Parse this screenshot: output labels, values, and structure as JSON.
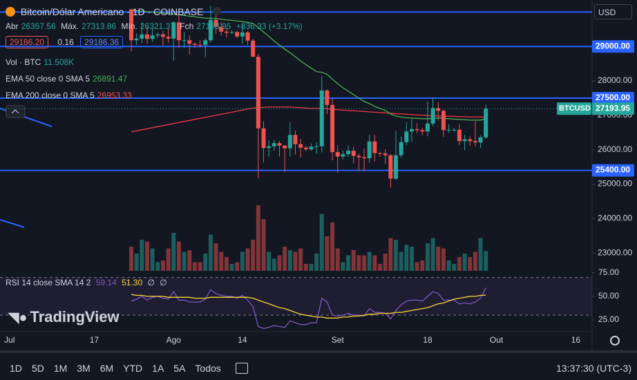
{
  "header": {
    "symbol": "Bitcoin/Dólar Americano · 1D · COINBASE",
    "ohlc": [
      {
        "label": "Abr",
        "value": "26357.56"
      },
      {
        "label": "Máx.",
        "value": "27313.86"
      },
      {
        "label": "Mín.",
        "value": "26321.37"
      },
      {
        "label": "Fch",
        "value": "27193.95"
      }
    ],
    "change": "+836.33 (+3.17%)",
    "sell": "29186.20",
    "spread": "0.16",
    "buy": "29186.36"
  },
  "indicators": {
    "volume": {
      "label": "Vol · BTC",
      "value": "11.508K"
    },
    "ema50": {
      "label": "EMA 50 close 0 SMA 5",
      "value": "26891.47"
    },
    "ema200": {
      "label": "EMA 200 close 0 SMA 5",
      "value": "26953.33"
    },
    "rsi": {
      "label": "RSI 14 close SMA 14 2",
      "values": [
        "59.14",
        "51.30",
        "∅",
        "∅"
      ]
    }
  },
  "logo": "TradingView",
  "currency": "USD",
  "chart": {
    "type": "candlestick",
    "candles": [
      [
        30080,
        30100,
        28860,
        29180
      ],
      [
        29180,
        29380,
        29050,
        29230
      ],
      [
        29230,
        29690,
        29100,
        29350
      ],
      [
        29350,
        29570,
        29080,
        29220
      ],
      [
        29220,
        29530,
        29130,
        29320
      ],
      [
        29320,
        29410,
        29250,
        29350
      ],
      [
        29350,
        29450,
        29030,
        29280
      ],
      [
        29280,
        29520,
        29110,
        29230
      ],
      [
        29230,
        29740,
        28590,
        29700
      ],
      [
        29700,
        30050,
        28950,
        29180
      ],
      [
        29180,
        29420,
        28960,
        29180
      ],
      [
        29180,
        29320,
        28760,
        29080
      ],
      [
        29080,
        29110,
        28960,
        29050
      ],
      [
        29050,
        29170,
        28970,
        29040
      ],
      [
        29040,
        29240,
        28700,
        29180
      ],
      [
        29180,
        30180,
        29110,
        29770
      ],
      [
        29770,
        30100,
        29360,
        29570
      ],
      [
        29570,
        29710,
        29320,
        29430
      ],
      [
        29430,
        29540,
        29260,
        29400
      ],
      [
        29400,
        29470,
        29360,
        29420
      ],
      [
        29420,
        29450,
        29250,
        29290
      ],
      [
        29290,
        29680,
        29080,
        29410
      ],
      [
        29410,
        29450,
        29050,
        29170
      ],
      [
        29170,
        29220,
        28700,
        28700
      ],
      [
        28700,
        28780,
        25170,
        26620
      ],
      [
        26620,
        26830,
        25630,
        26050
      ],
      [
        26050,
        26270,
        25800,
        26100
      ],
      [
        26100,
        26280,
        25970,
        26190
      ],
      [
        26190,
        26250,
        25800,
        26120
      ],
      [
        26120,
        26130,
        25350,
        26040
      ],
      [
        26040,
        26800,
        25800,
        26430
      ],
      [
        26430,
        26560,
        25860,
        26160
      ],
      [
        26160,
        26310,
        25770,
        26060
      ],
      [
        26060,
        26120,
        25960,
        26010
      ],
      [
        26010,
        26180,
        25970,
        26090
      ],
      [
        26090,
        26220,
        25880,
        26100
      ],
      [
        26100,
        28140,
        25920,
        27720
      ],
      [
        27720,
        27760,
        27030,
        27300
      ],
      [
        27300,
        27480,
        25690,
        25930
      ],
      [
        25930,
        26130,
        25330,
        25800
      ],
      [
        25800,
        25970,
        25710,
        25870
      ],
      [
        25870,
        26120,
        25780,
        25970
      ],
      [
        25970,
        26090,
        25600,
        25820
      ],
      [
        25820,
        25880,
        25380,
        25780
      ],
      [
        25780,
        26030,
        25370,
        25750
      ],
      [
        25750,
        26430,
        25620,
        26240
      ],
      [
        26240,
        26430,
        25660,
        25900
      ],
      [
        25900,
        25940,
        25800,
        25890
      ],
      [
        25890,
        26010,
        25590,
        25840
      ],
      [
        25840,
        25870,
        24900,
        25160
      ],
      [
        25160,
        26550,
        25120,
        25840
      ],
      [
        25840,
        26380,
        25770,
        26220
      ],
      [
        26220,
        26800,
        26130,
        26530
      ],
      [
        26530,
        26890,
        26230,
        26600
      ],
      [
        26600,
        26770,
        26480,
        26570
      ],
      [
        26570,
        26630,
        26420,
        26530
      ],
      [
        26530,
        27400,
        26390,
        26760
      ],
      [
        26760,
        27490,
        26680,
        27210
      ],
      [
        27210,
        27380,
        26850,
        27130
      ],
      [
        27130,
        27160,
        26370,
        26570
      ],
      [
        26570,
        26740,
        26490,
        26580
      ],
      [
        26580,
        26630,
        26530,
        26580
      ],
      [
        26580,
        26740,
        26130,
        26250
      ],
      [
        26250,
        26430,
        25990,
        26300
      ],
      [
        26300,
        26390,
        26110,
        26250
      ],
      [
        26250,
        26830,
        26100,
        26210
      ],
      [
        26210,
        26420,
        26050,
        26360
      ],
      [
        26357.56,
        27313.86,
        26321.37,
        27193.95
      ]
    ],
    "volume": [
      14,
      10,
      18,
      17,
      13,
      5,
      6,
      13,
      22,
      17,
      11,
      12,
      5,
      5,
      10,
      21,
      16,
      11,
      8,
      4,
      5,
      11,
      13,
      18,
      38,
      30,
      11,
      7,
      9,
      14,
      12,
      11,
      13,
      4,
      4,
      10,
      33,
      20,
      28,
      13,
      5,
      9,
      12,
      9,
      9,
      11,
      9,
      4,
      10,
      19,
      18,
      11,
      15,
      14,
      5,
      6,
      16,
      19,
      14,
      13,
      6,
      4,
      8,
      10,
      8,
      11,
      19,
      11.508
    ],
    "ema50": [
      30050,
      30040,
      30030,
      30010,
      30000,
      29990,
      29970,
      29950,
      29940,
      29920,
      29900,
      29880,
      29860,
      29840,
      29820,
      29820,
      29810,
      29790,
      29770,
      29760,
      29740,
      29720,
      29700,
      29670,
      29550,
      29420,
      29290,
      29160,
      29040,
      28920,
      28820,
      28700,
      28580,
      28470,
      28370,
      28270,
      28250,
      28190,
      28050,
      27920,
      27800,
      27700,
      27600,
      27500,
      27400,
      27340,
      27260,
      27200,
      27140,
      27040,
      26980,
      26950,
      26930,
      26920,
      26910,
      26900,
      26900,
      26910,
      26920,
      26910,
      26900,
      26890,
      26880,
      26870,
      26860,
      26860,
      26860,
      26891.47
    ],
    "ema200": [
      26520,
      26550,
      26580,
      26610,
      26640,
      26670,
      26700,
      26730,
      26760,
      26790,
      26820,
      26850,
      26880,
      26910,
      26940,
      26970,
      27000,
      27030,
      27060,
      27090,
      27120,
      27150,
      27180,
      27210,
      27220,
      27230,
      27240,
      27240,
      27240,
      27240,
      27240,
      27230,
      27220,
      27210,
      27200,
      27200,
      27200,
      27190,
      27170,
      27160,
      27150,
      27140,
      27130,
      27120,
      27110,
      27100,
      27090,
      27080,
      27070,
      27060,
      27050,
      27040,
      27030,
      27020,
      27010,
      27000,
      26990,
      26990,
      26980,
      26980,
      26970,
      26970,
      26960,
      26960,
      26950,
      26950,
      26950,
      26953.33
    ],
    "rsi": [
      45,
      47,
      50,
      46,
      49,
      50,
      48,
      47,
      55,
      46,
      46,
      44,
      44,
      44,
      47,
      57,
      53,
      51,
      50,
      50,
      48,
      51,
      46,
      39,
      18,
      16,
      17,
      19,
      18,
      17,
      24,
      22,
      20,
      20,
      22,
      22,
      48,
      44,
      30,
      29,
      30,
      32,
      30,
      30,
      29,
      37,
      33,
      33,
      32,
      26,
      35,
      41,
      45,
      46,
      46,
      45,
      50,
      55,
      53,
      46,
      46,
      46,
      42,
      43,
      42,
      44,
      48,
      59.14
    ],
    "rsi_sma": [
      52,
      51,
      51,
      50,
      50,
      50,
      50,
      49,
      49,
      49,
      49,
      49,
      48,
      48,
      48,
      49,
      49,
      49,
      49,
      49,
      49,
      49,
      49,
      48,
      46,
      44,
      42,
      40,
      38,
      37,
      35,
      33,
      31,
      30,
      29,
      28,
      28,
      27,
      27,
      27,
      28,
      28,
      29,
      29,
      30,
      31,
      31,
      32,
      32,
      32,
      33,
      33,
      34,
      35,
      36,
      37,
      38,
      40,
      42,
      43,
      45,
      47,
      48,
      49,
      50,
      50,
      51,
      51.3
    ],
    "ylim": [
      22420,
      30350
    ],
    "yticks": [
      {
        "value": 28000,
        "label": "28000.00"
      },
      {
        "value": 27000,
        "label": "27000.00"
      },
      {
        "value": 26000,
        "label": "26000.00"
      },
      {
        "value": 25000,
        "label": "25000.00"
      },
      {
        "value": 24000,
        "label": "24000.00"
      },
      {
        "value": 23000,
        "label": "23000.00"
      }
    ],
    "hlines": [
      {
        "value": 30000
      },
      {
        "value": 29000,
        "label": "29000.00"
      },
      {
        "value": 27500,
        "label": "27500.00"
      },
      {
        "value": 25400,
        "label": "25400.00"
      }
    ],
    "last": {
      "name": "BTCUSD",
      "value": 27193.95
    },
    "volume_ylim": [
      0,
      40
    ],
    "rsi_ylim": [
      14,
      80
    ],
    "rsi_yticks": [
      {
        "value": 75,
        "label": "75.00"
      },
      {
        "value": 50,
        "label": "50.00"
      },
      {
        "value": 25,
        "label": "25.00"
      }
    ],
    "rsi_bands": [
      70,
      30
    ],
    "xticks": [
      "Jul",
      "17",
      "Ago",
      "14",
      "Set",
      "18",
      "Out",
      "16"
    ],
    "colors": {
      "up": "#26a69a",
      "down": "#ef5350",
      "ema50": "#4caf50",
      "ema200": "#f23645",
      "rsi": "#7e57c2",
      "rsi_sma": "#fdd835",
      "hline": "#2962ff"
    }
  },
  "toolbar": {
    "ranges": [
      "1D",
      "5D",
      "1M",
      "3M",
      "6M",
      "YTD",
      "1A",
      "5A",
      "Todos"
    ],
    "clock": "13:37:30 (UTC-3)"
  }
}
